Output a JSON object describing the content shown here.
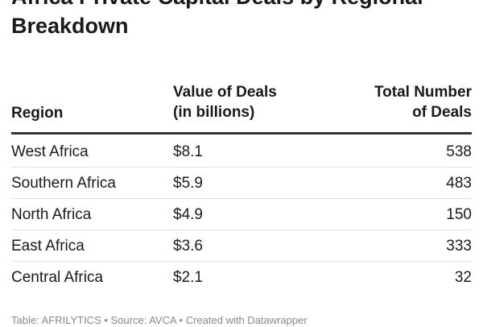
{
  "chart_data": {
    "type": "table",
    "title": "Africa Private Capital Deals by Regional Breakdown",
    "columns": [
      "Region",
      "Value of Deals (in billions)",
      "Total Number of Deals"
    ],
    "header": {
      "region": "Region",
      "value_line1": "Value of Deals",
      "value_line2": "(in billions)",
      "count_line1": "Total Number",
      "count_line2": "of Deals"
    },
    "rows": [
      {
        "region": "West Africa",
        "value": "$8.1",
        "count": "538"
      },
      {
        "region": "Southern Africa",
        "value": "$5.9",
        "count": "483"
      },
      {
        "region": "North Africa",
        "value": "$4.9",
        "count": "150"
      },
      {
        "region": "East Africa",
        "value": "$3.6",
        "count": "333"
      },
      {
        "region": "Central Africa",
        "value": "$2.1",
        "count": "32"
      }
    ],
    "footer": "Table: AFRILYTICS • Source: AVCA • Created with Datawrapper"
  }
}
